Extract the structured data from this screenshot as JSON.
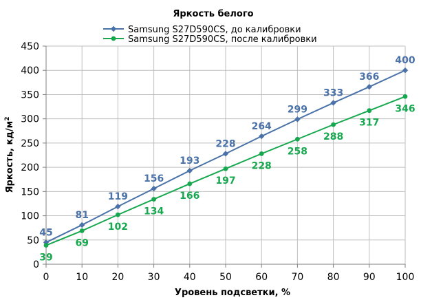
{
  "chart_data": {
    "type": "line",
    "title": "Яркость белого",
    "xlabel": "Уровень подсветки, %",
    "ylabel_main": "Яркость, кд/м",
    "ylabel_sup": "2",
    "x": [
      0,
      10,
      20,
      30,
      40,
      50,
      60,
      70,
      80,
      90,
      100
    ],
    "xlim": [
      0,
      100
    ],
    "ylim": [
      0,
      450
    ],
    "yticks": [
      0,
      50,
      100,
      150,
      200,
      250,
      300,
      350,
      400,
      450
    ],
    "grid": true,
    "legend_position": "top",
    "series": [
      {
        "name": "Samsung S27D590CS, до калибровки",
        "color": "#4a72a8",
        "marker": "diamond",
        "values": [
          45,
          81,
          119,
          156,
          193,
          228,
          264,
          299,
          333,
          366,
          400
        ]
      },
      {
        "name": "Samsung S27D590CS, после калибровки",
        "color": "#17a84f",
        "marker": "circle",
        "values": [
          39,
          69,
          102,
          134,
          166,
          197,
          228,
          258,
          288,
          317,
          346
        ]
      }
    ]
  }
}
